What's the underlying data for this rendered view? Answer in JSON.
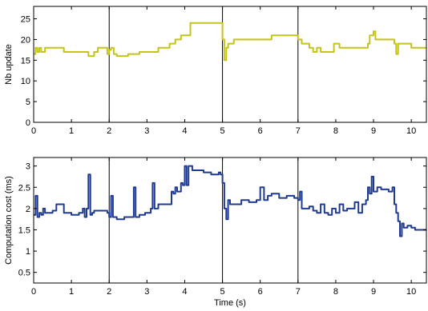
{
  "chart_data": [
    {
      "type": "line",
      "title": "",
      "xlabel": "",
      "ylabel": "Nb update",
      "xlim": [
        0,
        10.4
      ],
      "ylim": [
        0,
        28
      ],
      "xticks": [
        0,
        1,
        2,
        3,
        4,
        5,
        6,
        7,
        8,
        9,
        10
      ],
      "yticks": [
        0,
        5,
        10,
        15,
        20,
        25
      ],
      "vlines": [
        2,
        5,
        7
      ],
      "grid": false,
      "legend": "none",
      "series": [
        {
          "color": "#c4c41a",
          "x": [
            0,
            0.05,
            0.1,
            0.15,
            0.2,
            0.3,
            0.8,
            1.45,
            1.6,
            1.7,
            1.95,
            2.0,
            2.05,
            2.12,
            2.2,
            2.5,
            2.8,
            3.3,
            3.6,
            3.75,
            3.9,
            4.15,
            4.9,
            5.0,
            5.05,
            5.1,
            5.15,
            5.3,
            6.3,
            6.9,
            7.0,
            7.1,
            7.3,
            7.4,
            7.5,
            7.6,
            7.8,
            7.95,
            8.1,
            8.85,
            8.9,
            9.0,
            9.05,
            9.1,
            9.55,
            9.6,
            9.65,
            9.7,
            10.0,
            10.4
          ],
          "y": [
            16.5,
            18,
            17,
            18,
            17,
            18,
            17,
            16,
            17,
            18,
            16.5,
            17.5,
            18,
            16.5,
            16,
            16.5,
            17,
            18,
            19,
            20,
            21,
            24,
            24,
            20,
            15,
            18,
            19,
            20,
            21,
            21,
            20,
            19,
            18,
            17,
            18,
            17,
            17,
            19,
            18,
            19,
            21,
            22,
            20,
            20,
            19,
            16.5,
            19,
            19,
            18,
            18
          ]
        }
      ]
    },
    {
      "type": "line",
      "title": "",
      "xlabel": "Time (s)",
      "ylabel": "Computation cost (ms)",
      "xlim": [
        0,
        10.4
      ],
      "ylim": [
        0.25,
        3.2
      ],
      "xticks": [
        0,
        1,
        2,
        3,
        4,
        5,
        6,
        7,
        8,
        9,
        10
      ],
      "yticks": [
        0.5,
        1,
        1.5,
        2,
        2.5,
        3
      ],
      "vlines": [
        2,
        5,
        7
      ],
      "grid": false,
      "legend": "none",
      "series": [
        {
          "color": "#1f3a93",
          "x": [
            0,
            0.05,
            0.1,
            0.15,
            0.2,
            0.25,
            0.3,
            0.5,
            0.6,
            0.8,
            1.0,
            1.2,
            1.3,
            1.35,
            1.4,
            1.45,
            1.5,
            1.55,
            1.6,
            1.8,
            1.95,
            2.0,
            2.05,
            2.1,
            2.2,
            2.4,
            2.6,
            2.65,
            2.7,
            2.75,
            2.8,
            2.95,
            3.1,
            3.15,
            3.2,
            3.3,
            3.5,
            3.65,
            3.7,
            3.75,
            3.8,
            3.9,
            3.95,
            4.0,
            4.05,
            4.1,
            4.2,
            4.3,
            4.5,
            4.7,
            4.9,
            4.95,
            5.0,
            5.05,
            5.1,
            5.15,
            5.2,
            5.3,
            5.5,
            5.7,
            5.9,
            6.0,
            6.1,
            6.2,
            6.3,
            6.5,
            6.7,
            6.9,
            7.0,
            7.05,
            7.1,
            7.2,
            7.3,
            7.4,
            7.5,
            7.6,
            7.7,
            7.8,
            7.9,
            8.0,
            8.1,
            8.2,
            8.3,
            8.5,
            8.6,
            8.7,
            8.8,
            8.85,
            8.9,
            8.95,
            9.0,
            9.1,
            9.2,
            9.4,
            9.5,
            9.55,
            9.6,
            9.65,
            9.7,
            9.75,
            9.8,
            9.9,
            10.0,
            10.1,
            10.2,
            10.3,
            10.4
          ],
          "y": [
            1.85,
            2.3,
            1.8,
            1.9,
            1.85,
            2.0,
            1.9,
            1.95,
            2.1,
            1.9,
            1.85,
            1.9,
            2.0,
            1.8,
            2.0,
            2.8,
            1.85,
            1.9,
            1.95,
            1.95,
            1.9,
            1.8,
            2.3,
            1.8,
            1.75,
            1.8,
            1.8,
            2.5,
            1.8,
            1.8,
            1.85,
            1.9,
            2.0,
            2.6,
            2.0,
            2.1,
            2.1,
            2.4,
            2.35,
            2.5,
            2.4,
            2.6,
            2.55,
            3.0,
            2.55,
            3.0,
            2.9,
            2.9,
            2.85,
            2.8,
            2.85,
            2.8,
            2.6,
            2.0,
            1.75,
            2.2,
            2.1,
            2.1,
            2.2,
            2.15,
            2.2,
            2.5,
            2.2,
            2.3,
            2.35,
            2.25,
            2.3,
            2.25,
            2.2,
            2.4,
            2.0,
            2.0,
            2.05,
            1.95,
            1.9,
            2.1,
            1.9,
            1.85,
            2.0,
            1.9,
            2.1,
            1.95,
            2.0,
            2.15,
            1.9,
            2.1,
            2.2,
            2.5,
            2.35,
            2.75,
            2.4,
            2.5,
            2.45,
            2.4,
            2.5,
            2.1,
            1.9,
            1.7,
            1.35,
            1.65,
            1.55,
            1.6,
            1.55,
            1.5,
            1.5,
            1.5,
            1.5
          ]
        }
      ]
    }
  ]
}
